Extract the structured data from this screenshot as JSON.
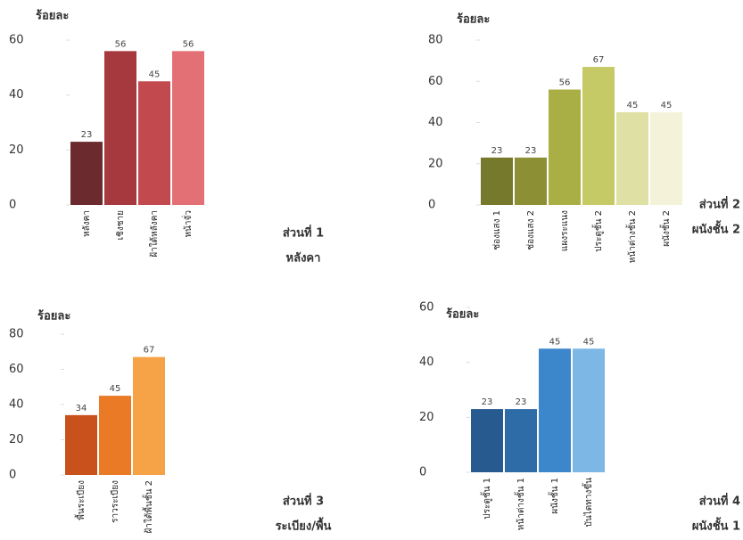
{
  "chart_data": [
    {
      "type": "bar",
      "y_label": "ร้อยละ",
      "categories": [
        "หลังคา",
        "เชิงชาย",
        "ฝ้าใต้หลังคา",
        "หน้าจั่ว"
      ],
      "values": [
        23,
        56,
        45,
        56
      ],
      "colors": [
        "#6b2a2e",
        "#a5393d",
        "#c24a4e",
        "#e27074"
      ],
      "ylim": [
        0,
        60
      ],
      "yticks": [
        0,
        20,
        40,
        60
      ],
      "caption_title": "ส่วนที่ 1",
      "caption_subtitle": "หลังคา"
    },
    {
      "type": "bar",
      "y_label": "ร้อยละ",
      "categories": [
        "ช่องแสง 1",
        "ช่องแสง 2",
        "แผงระแนง",
        "ประตูชั้น 2",
        "หน้าต่างชั้น 2",
        "ผนังชั้น 2"
      ],
      "values": [
        23,
        23,
        56,
        67,
        45,
        45
      ],
      "colors": [
        "#76782c",
        "#8c8f33",
        "#a9ae45",
        "#c5ca66",
        "#dfe1a4",
        "#f4f3da"
      ],
      "ylim": [
        0,
        80
      ],
      "yticks": [
        0,
        20,
        40,
        60,
        80
      ],
      "caption_title": "ส่วนที่ 2",
      "caption_subtitle": "ผนังชั้น 2"
    },
    {
      "type": "bar",
      "y_label": "ร้อยละ",
      "categories": [
        "พื้นระเบียง",
        "ราวระเบียง",
        "ฝ้าใต้พื้นชั้น 2"
      ],
      "values": [
        34,
        45,
        67
      ],
      "colors": [
        "#c9511c",
        "#ea7a26",
        "#f6a246"
      ],
      "ylim": [
        0,
        80
      ],
      "yticks": [
        0,
        20,
        40,
        60,
        80
      ],
      "caption_title": "ส่วนที่ 3",
      "caption_subtitle": "ระเบียง/พื้น"
    },
    {
      "type": "bar",
      "y_label": "ร้อยละ",
      "categories": [
        "ประตูชั้น 1",
        "หน้าต่างชั้น 1",
        "ผนังชั้น 1",
        "บันไดทางขึ้น"
      ],
      "values": [
        23,
        23,
        45,
        45
      ],
      "colors": [
        "#275b8f",
        "#2e6ca8",
        "#3c86cc",
        "#7cb7e6"
      ],
      "ylim": [
        0,
        60
      ],
      "yticks": [
        0,
        20,
        40,
        60
      ],
      "caption_title": "ส่วนที่ 4",
      "caption_subtitle": "ผนังชั้น 1"
    }
  ]
}
